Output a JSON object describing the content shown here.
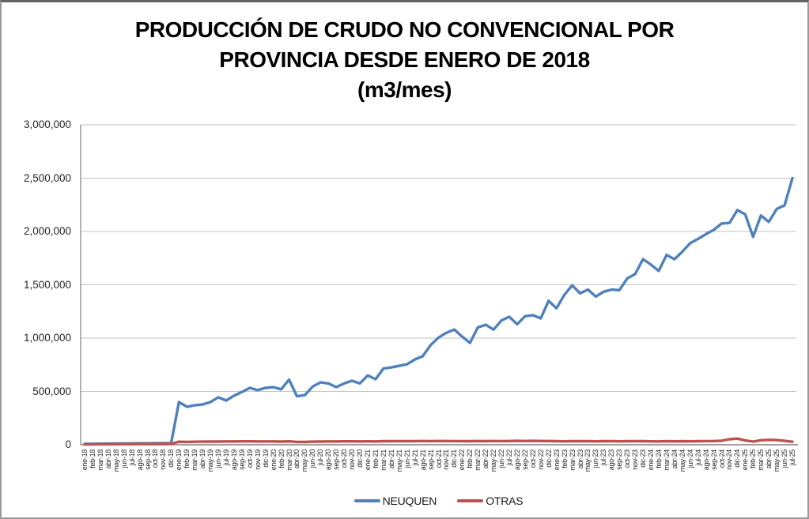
{
  "window": {
    "background": "#FFFFFF",
    "border_color": "#9A9A9A"
  },
  "title": {
    "line1": "PRODUCCIÓN DE CRUDO NO CONVENCIONAL POR",
    "line2": "PROVINCIA DESDE ENERO DE 2018",
    "line3": "(m3/mes)"
  },
  "chart_data": {
    "type": "line",
    "title": "PRODUCCIÓN DE CRUDO NO CONVENCIONAL POR PROVINCIA DESDE ENERO DE 2018 (m3/mes)",
    "ylabel": "",
    "xlabel": "",
    "ylim": [
      0,
      3000000
    ],
    "ytick_step": 500000,
    "ytick_labels": [
      "0",
      "500,000",
      "1,000,000",
      "1,500,000",
      "2,000,000",
      "2,500,000",
      "3,000,000"
    ],
    "grid": true,
    "gridline_color": "#C3C3C3",
    "axis_color": "#808080",
    "legend_position": "bottom",
    "categories": [
      "ene-18",
      "feb-18",
      "mar-18",
      "abr-18",
      "may-18",
      "jun-18",
      "jul-18",
      "ago-18",
      "sep-18",
      "oct-18",
      "nov-18",
      "dic-18",
      "ene-19",
      "feb-19",
      "mar-19",
      "abr-19",
      "may-19",
      "jun-19",
      "jul-19",
      "ago-19",
      "sep-19",
      "oct-19",
      "nov-19",
      "dic-19",
      "ene-20",
      "feb-20",
      "mar-20",
      "abr-20",
      "may-20",
      "jun-20",
      "jul-20",
      "ago-20",
      "sep-20",
      "oct-20",
      "nov-20",
      "dic-20",
      "ene-21",
      "feb-21",
      "mar-21",
      "abr-21",
      "may-21",
      "jun-21",
      "jul-21",
      "ago-21",
      "sep-21",
      "oct-21",
      "nov-21",
      "dic-21",
      "ene-22",
      "feb-22",
      "mar-22",
      "abr-22",
      "may-22",
      "jun-22",
      "jul-22",
      "ago-22",
      "sep-22",
      "oct-22",
      "nov-22",
      "dic-22",
      "ene-23",
      "feb-23",
      "mar-23",
      "abr-23",
      "may-23",
      "jun-23",
      "jul-23",
      "ago-23",
      "sep-23",
      "oct-23",
      "nov-23",
      "dic-23",
      "ene-24",
      "feb-24",
      "mar-24",
      "abr-24",
      "may-24",
      "jun-24",
      "jul-24",
      "ago-24",
      "sep-24",
      "oct-24",
      "nov-24",
      "dic-24",
      "ene-25",
      "feb-25",
      "mar-25",
      "abr-25",
      "may-25",
      "jun-25",
      "jul-25"
    ],
    "series": [
      {
        "name": "NEUQUEN",
        "color": "#4F81BD",
        "values": [
          8000,
          9000,
          9500,
          10000,
          11000,
          12000,
          12500,
          13000,
          13500,
          14000,
          14500,
          15000,
          400000,
          356000,
          370000,
          378000,
          400000,
          445000,
          415000,
          460000,
          495000,
          533000,
          512000,
          533000,
          540000,
          520000,
          610000,
          455000,
          465000,
          545000,
          585000,
          575000,
          540000,
          575000,
          600000,
          575000,
          650000,
          615000,
          715000,
          725000,
          740000,
          755000,
          800000,
          830000,
          935000,
          1005000,
          1050000,
          1080000,
          1015000,
          955000,
          1100000,
          1125000,
          1080000,
          1165000,
          1200000,
          1130000,
          1205000,
          1215000,
          1185000,
          1350000,
          1280000,
          1405000,
          1495000,
          1420000,
          1455000,
          1390000,
          1435000,
          1455000,
          1450000,
          1560000,
          1600000,
          1740000,
          1690000,
          1630000,
          1780000,
          1740000,
          1810000,
          1890000,
          1930000,
          1975000,
          2015000,
          2075000,
          2080000,
          2200000,
          2160000,
          1950000,
          2150000,
          2090000,
          2210000,
          2245000,
          2500000
        ]
      },
      {
        "name": "OTRAS",
        "color": "#C0504D",
        "values": [
          4000,
          4500,
          5000,
          5000,
          5500,
          6000,
          6000,
          6500,
          7000,
          7000,
          7500,
          8000,
          28000,
          27000,
          28000,
          29000,
          30000,
          30000,
          31000,
          31000,
          32000,
          32000,
          31000,
          31000,
          31000,
          30000,
          32000,
          27000,
          26000,
          29000,
          30000,
          31000,
          31000,
          32000,
          32000,
          31000,
          32000,
          31000,
          33000,
          33000,
          34000,
          33000,
          34000,
          35000,
          34000,
          35000,
          35000,
          34000,
          34000,
          33000,
          35000,
          34000,
          35000,
          34000,
          35000,
          36000,
          35000,
          36000,
          35000,
          35000,
          33000,
          32000,
          34000,
          33000,
          34000,
          32000,
          33000,
          33000,
          32000,
          33000,
          34000,
          33000,
          32000,
          31000,
          33000,
          32000,
          33000,
          32000,
          33000,
          34000,
          35000,
          38000,
          52000,
          58000,
          40000,
          30000,
          42000,
          46000,
          44000,
          36000,
          28000
        ]
      }
    ]
  }
}
